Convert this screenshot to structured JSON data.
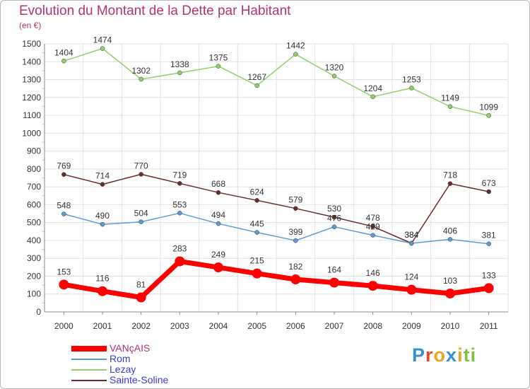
{
  "header": {
    "title": "Evolution du Montant de la Dette par Habitant",
    "subtitle": "(en €)"
  },
  "brand": {
    "letters": [
      "P",
      "r",
      "o",
      "x",
      "i",
      "t",
      "i"
    ],
    "colors": [
      "#3a8fd0",
      "#e8472d",
      "#f3a21a",
      "#3a8fd0",
      "#f3a21a",
      "#7cc242",
      "#7cc242"
    ]
  },
  "colors": {
    "title": "#b5336f",
    "grid": "#e0e0e0",
    "axis": "#888888"
  },
  "chart_data": {
    "type": "line",
    "x": [
      "2000",
      "2001",
      "2002",
      "2003",
      "2004",
      "2005",
      "2006",
      "2007",
      "2008",
      "2009",
      "2010",
      "2011"
    ],
    "ylim": [
      0,
      1500
    ],
    "yticks": [
      0,
      100,
      200,
      300,
      400,
      500,
      600,
      700,
      800,
      900,
      1000,
      1100,
      1200,
      1300,
      1400,
      1500
    ],
    "grid": true,
    "legend_position": "bottom-left",
    "series": [
      {
        "name": "VANçAIS",
        "color": "#ff0000",
        "values": [
          153,
          116,
          81,
          283,
          249,
          215,
          182,
          164,
          146,
          124,
          103,
          133
        ],
        "labels": [
          "153",
          "116",
          "81",
          "283",
          "249",
          "215",
          "182",
          "164",
          "146",
          "124",
          "103",
          "133"
        ]
      },
      {
        "name": "Rom",
        "color": "#5a9bd4",
        "values": [
          548,
          490,
          504,
          553,
          494,
          445,
          399,
          476,
          429,
          384,
          406,
          381
        ],
        "labels": [
          "548",
          "490",
          "504",
          "553",
          "494",
          "445",
          "399",
          "476",
          "429",
          "384",
          "406",
          "381"
        ]
      },
      {
        "name": "Lezay",
        "color": "#8fd06a",
        "values": [
          1404,
          1474,
          1302,
          1338,
          1375,
          1267,
          1442,
          1320,
          1204,
          1253,
          1149,
          1099
        ],
        "labels": [
          "1404",
          "1474",
          "1302",
          "1338",
          "1375",
          "1267",
          "1442",
          "1320",
          "1204",
          "1253",
          "1149",
          "1099"
        ]
      },
      {
        "name": "Sainte-Soline",
        "color": "#6b2a2a",
        "values": [
          769,
          714,
          770,
          719,
          668,
          624,
          579,
          530,
          478,
          384,
          718,
          673
        ],
        "labels": [
          "769",
          "714",
          "770",
          "719",
          "668",
          "624",
          "579",
          "530",
          "478",
          "384",
          "718",
          "673"
        ]
      }
    ]
  }
}
